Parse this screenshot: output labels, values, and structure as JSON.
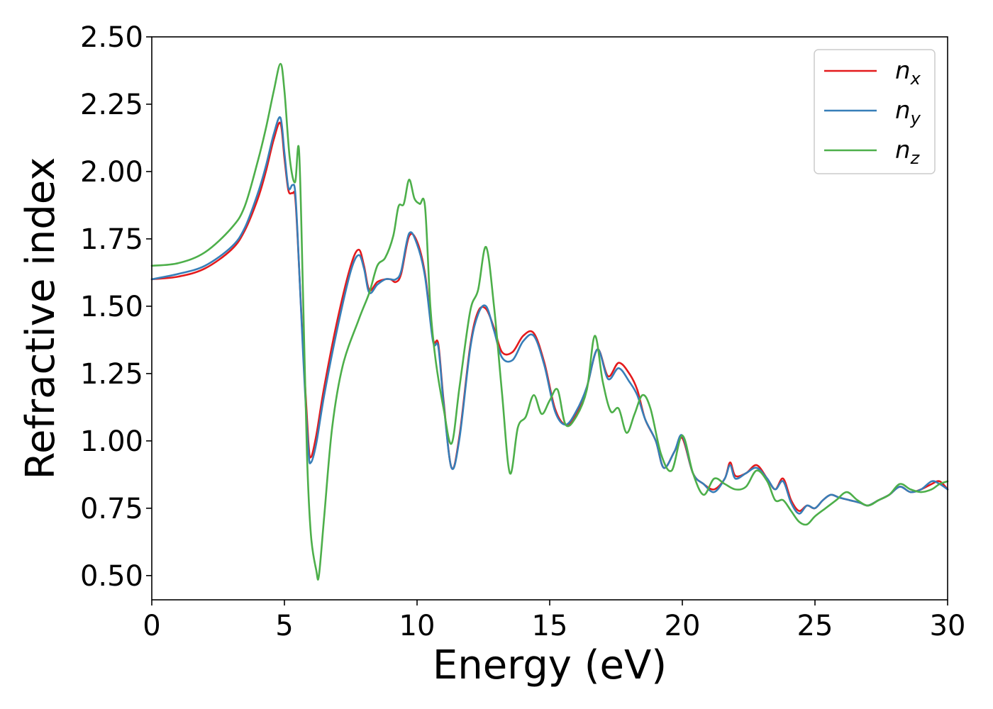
{
  "chart_data": {
    "type": "line",
    "xlabel": "Energy (eV)",
    "ylabel": "Refractive index",
    "xlim": [
      0,
      30
    ],
    "ylim": [
      0.41,
      2.5
    ],
    "xticks": [
      "0",
      "5",
      "10",
      "15",
      "20",
      "25",
      "30"
    ],
    "yticks": [
      "0.50",
      "0.75",
      "1.00",
      "1.25",
      "1.50",
      "1.75",
      "2.00",
      "2.25",
      "2.50"
    ],
    "grid": false,
    "legend_position": "top-right",
    "series": [
      {
        "name": "n",
        "subscript": "x",
        "color": "#e41a1c",
        "x": [
          0,
          1,
          2,
          3,
          3.5,
          4,
          4.3,
          4.6,
          4.85,
          5.0,
          5.15,
          5.3,
          5.4,
          5.5,
          5.7,
          5.9,
          6.0,
          6.2,
          6.5,
          7.0,
          7.5,
          7.8,
          8.0,
          8.2,
          8.5,
          8.8,
          9.0,
          9.2,
          9.4,
          9.7,
          10.0,
          10.3,
          10.6,
          10.8,
          11.0,
          11.3,
          11.6,
          12.0,
          12.3,
          12.6,
          12.9,
          13.2,
          13.6,
          14.0,
          14.4,
          14.8,
          15.2,
          15.6,
          16.0,
          16.4,
          16.8,
          17.2,
          17.6,
          18.0,
          18.3,
          18.6,
          19.0,
          19.3,
          19.7,
          20.0,
          20.4,
          20.8,
          21.2,
          21.6,
          21.8,
          22.0,
          22.4,
          22.8,
          23.2,
          23.5,
          23.8,
          24.1,
          24.4,
          24.7,
          25.0,
          25.3,
          25.6,
          25.9,
          26.3,
          26.7,
          27.0,
          27.4,
          27.8,
          28.2,
          28.6,
          29.0,
          29.4,
          29.7,
          30.0
        ],
        "values": [
          1.6,
          1.61,
          1.64,
          1.71,
          1.78,
          1.9,
          2.0,
          2.12,
          2.18,
          2.05,
          1.93,
          1.92,
          1.91,
          1.75,
          1.35,
          1.0,
          0.94,
          1.02,
          1.2,
          1.45,
          1.65,
          1.71,
          1.65,
          1.56,
          1.59,
          1.6,
          1.6,
          1.59,
          1.62,
          1.76,
          1.74,
          1.62,
          1.38,
          1.36,
          1.15,
          0.9,
          1.02,
          1.35,
          1.48,
          1.49,
          1.42,
          1.33,
          1.33,
          1.39,
          1.4,
          1.29,
          1.12,
          1.06,
          1.1,
          1.2,
          1.34,
          1.24,
          1.29,
          1.25,
          1.19,
          1.08,
          1.0,
          0.9,
          0.96,
          1.01,
          0.88,
          0.84,
          0.82,
          0.86,
          0.92,
          0.87,
          0.88,
          0.91,
          0.86,
          0.82,
          0.86,
          0.78,
          0.74,
          0.76,
          0.75,
          0.78,
          0.8,
          0.79,
          0.78,
          0.77,
          0.76,
          0.78,
          0.8,
          0.83,
          0.81,
          0.82,
          0.84,
          0.85,
          0.82
        ]
      },
      {
        "name": "n",
        "subscript": "y",
        "color": "#377eb8",
        "x": [
          0,
          1,
          2,
          3,
          3.5,
          4,
          4.3,
          4.6,
          4.85,
          5.0,
          5.15,
          5.3,
          5.4,
          5.5,
          5.7,
          5.9,
          6.0,
          6.2,
          6.5,
          7.0,
          7.5,
          7.8,
          8.0,
          8.2,
          8.5,
          8.8,
          9.0,
          9.2,
          9.4,
          9.7,
          10.0,
          10.3,
          10.6,
          10.8,
          11.0,
          11.3,
          11.6,
          12.0,
          12.3,
          12.6,
          12.9,
          13.2,
          13.6,
          14.0,
          14.4,
          14.8,
          15.2,
          15.6,
          16.0,
          16.4,
          16.8,
          17.2,
          17.6,
          18.0,
          18.3,
          18.6,
          19.0,
          19.3,
          19.7,
          20.0,
          20.4,
          20.8,
          21.2,
          21.6,
          21.8,
          22.0,
          22.4,
          22.8,
          23.2,
          23.5,
          23.8,
          24.1,
          24.4,
          24.7,
          25.0,
          25.3,
          25.6,
          25.9,
          26.3,
          26.7,
          27.0,
          27.4,
          27.8,
          28.2,
          28.6,
          29.0,
          29.4,
          29.7,
          30.0
        ],
        "values": [
          1.6,
          1.62,
          1.65,
          1.72,
          1.79,
          1.92,
          2.02,
          2.14,
          2.2,
          2.07,
          1.94,
          1.95,
          1.93,
          1.76,
          1.33,
          0.97,
          0.92,
          0.99,
          1.17,
          1.42,
          1.63,
          1.69,
          1.64,
          1.55,
          1.58,
          1.6,
          1.6,
          1.6,
          1.63,
          1.77,
          1.73,
          1.61,
          1.37,
          1.35,
          1.14,
          0.9,
          1.01,
          1.34,
          1.47,
          1.5,
          1.41,
          1.31,
          1.3,
          1.37,
          1.39,
          1.28,
          1.11,
          1.06,
          1.11,
          1.2,
          1.34,
          1.23,
          1.27,
          1.22,
          1.17,
          1.08,
          1.0,
          0.9,
          0.96,
          1.02,
          0.88,
          0.84,
          0.81,
          0.86,
          0.91,
          0.86,
          0.88,
          0.9,
          0.86,
          0.82,
          0.85,
          0.77,
          0.73,
          0.76,
          0.75,
          0.78,
          0.8,
          0.79,
          0.78,
          0.77,
          0.76,
          0.78,
          0.8,
          0.83,
          0.81,
          0.82,
          0.85,
          0.84,
          0.82
        ]
      },
      {
        "name": "n",
        "subscript": "z",
        "color": "#4daf4a",
        "x": [
          0,
          1,
          2,
          3,
          3.5,
          4,
          4.3,
          4.6,
          4.85,
          5.0,
          5.2,
          5.4,
          5.55,
          5.7,
          5.85,
          6.0,
          6.2,
          6.3,
          6.5,
          6.8,
          7.2,
          7.8,
          8.2,
          8.5,
          8.8,
          9.1,
          9.3,
          9.5,
          9.7,
          9.9,
          10.1,
          10.3,
          10.5,
          10.7,
          11.0,
          11.3,
          11.6,
          12.0,
          12.3,
          12.6,
          12.9,
          13.2,
          13.5,
          13.8,
          14.1,
          14.4,
          14.7,
          15.0,
          15.3,
          15.6,
          16.0,
          16.4,
          16.7,
          17.0,
          17.3,
          17.6,
          17.9,
          18.2,
          18.5,
          18.8,
          19.2,
          19.6,
          20.0,
          20.4,
          20.8,
          21.2,
          21.6,
          22.0,
          22.4,
          22.8,
          23.2,
          23.5,
          23.8,
          24.1,
          24.4,
          24.7,
          25.0,
          25.4,
          25.8,
          26.2,
          26.6,
          27.0,
          27.4,
          27.8,
          28.2,
          28.6,
          29.0,
          29.4,
          29.7,
          30.0
        ],
        "values": [
          1.65,
          1.66,
          1.7,
          1.79,
          1.87,
          2.04,
          2.16,
          2.3,
          2.4,
          2.3,
          2.05,
          1.96,
          2.08,
          1.55,
          0.95,
          0.65,
          0.52,
          0.5,
          0.72,
          1.05,
          1.28,
          1.45,
          1.55,
          1.65,
          1.68,
          1.76,
          1.87,
          1.88,
          1.97,
          1.9,
          1.88,
          1.87,
          1.5,
          1.3,
          1.12,
          0.99,
          1.2,
          1.48,
          1.56,
          1.72,
          1.5,
          1.18,
          0.88,
          1.05,
          1.09,
          1.17,
          1.1,
          1.15,
          1.19,
          1.06,
          1.09,
          1.19,
          1.39,
          1.22,
          1.11,
          1.12,
          1.03,
          1.1,
          1.17,
          1.12,
          0.95,
          0.89,
          1.02,
          0.88,
          0.8,
          0.86,
          0.84,
          0.82,
          0.83,
          0.89,
          0.85,
          0.78,
          0.78,
          0.74,
          0.7,
          0.69,
          0.72,
          0.75,
          0.78,
          0.81,
          0.78,
          0.76,
          0.78,
          0.8,
          0.84,
          0.82,
          0.81,
          0.82,
          0.84,
          0.85
        ]
      }
    ]
  }
}
